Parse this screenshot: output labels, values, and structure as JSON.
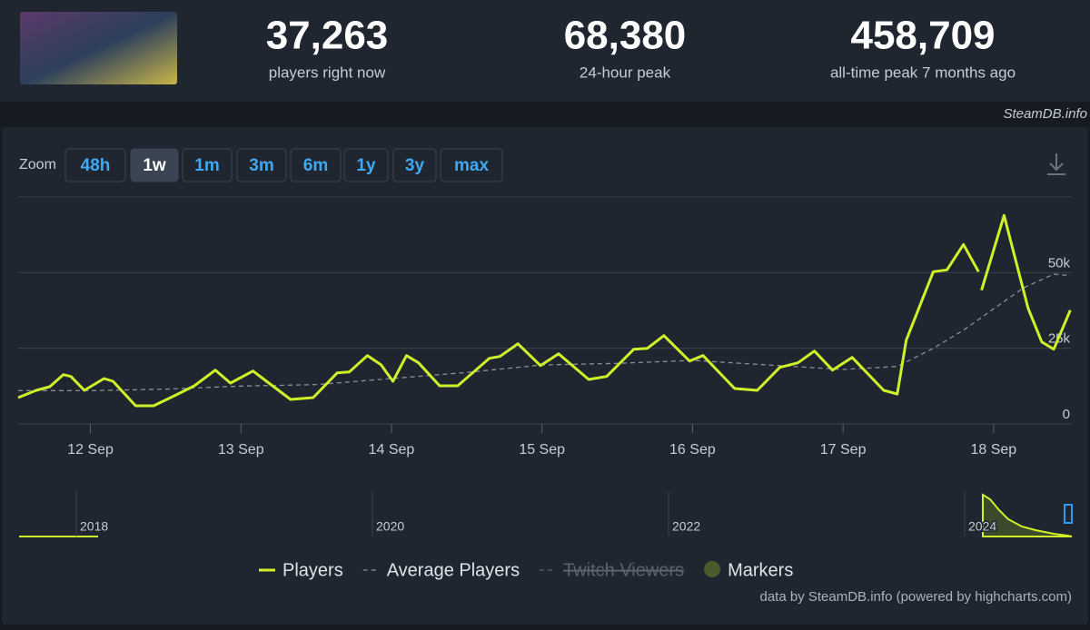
{
  "stats": [
    {
      "value": "37,263",
      "label": "players right now"
    },
    {
      "value": "68,380",
      "label": "24-hour peak"
    },
    {
      "value": "458,709",
      "label": "all-time peak 7 months ago"
    }
  ],
  "watermark": "SteamDB.info",
  "zoom": {
    "label": "Zoom",
    "buttons": [
      "48h",
      "1w",
      "1m",
      "3m",
      "6m",
      "1y",
      "3y",
      "max"
    ],
    "active": "1w"
  },
  "chart_data": {
    "type": "line",
    "xlim": [
      11.52,
      18.52
    ],
    "xticks": [
      {
        "value": 12,
        "label": "12 Sep"
      },
      {
        "value": 13,
        "label": "13 Sep"
      },
      {
        "value": 14,
        "label": "14 Sep"
      },
      {
        "value": 15,
        "label": "15 Sep"
      },
      {
        "value": 16,
        "label": "16 Sep"
      },
      {
        "value": 17,
        "label": "17 Sep"
      },
      {
        "value": 18,
        "label": "18 Sep"
      }
    ],
    "ylim": [
      0,
      75000
    ],
    "yticks": [
      0,
      {
        "value": 25000,
        "label": "25k"
      },
      {
        "value": 50000,
        "label": "50k"
      }
    ],
    "grid": true,
    "series": [
      {
        "name": "Players",
        "color": "#d0f12a",
        "dashed": false,
        "x": [
          11.52,
          11.64,
          11.73,
          11.82,
          11.87,
          11.96,
          12.09,
          12.15,
          12.3,
          12.42,
          12.57,
          12.69,
          12.83,
          12.93,
          13.08,
          13.17,
          13.33,
          13.48,
          13.64,
          13.72,
          13.84,
          13.93,
          14.01,
          14.1,
          14.18,
          14.32,
          14.44,
          14.65,
          14.72,
          14.84,
          14.99,
          15.11,
          15.31,
          15.43,
          15.61,
          15.7,
          15.81,
          15.98,
          16.07,
          16.28,
          16.43,
          16.58,
          16.7,
          16.81,
          16.93,
          17.06,
          17.27,
          17.36,
          17.42,
          17.6,
          17.69,
          17.8,
          17.9,
          17.91,
          17.92,
          18.07,
          18.23,
          18.32,
          18.4,
          18.51
        ],
        "values": [
          8700,
          11100,
          12300,
          16300,
          15700,
          11100,
          15000,
          14100,
          6000,
          6000,
          9600,
          12600,
          17800,
          13500,
          17500,
          14100,
          8100,
          8700,
          16900,
          17200,
          22600,
          19600,
          14100,
          22600,
          20200,
          12600,
          12600,
          21700,
          22300,
          26500,
          19300,
          23200,
          14700,
          15700,
          24700,
          25000,
          29200,
          20800,
          22600,
          11700,
          11100,
          18700,
          20200,
          24100,
          17800,
          22000,
          11100,
          9900,
          27700,
          50300,
          50900,
          59300,
          50300,
          null,
          44200,
          68900,
          38200,
          27100,
          24700,
          37600
        ]
      },
      {
        "name": "Average Players",
        "color": "#8a8f96",
        "dashed": true,
        "x": [
          11.52,
          12,
          12.5,
          13,
          13.5,
          14,
          14.5,
          15,
          15.5,
          16,
          16.5,
          17,
          17.36,
          17.6,
          17.8,
          18,
          18.2,
          18.4,
          18.51
        ],
        "values": [
          11000,
          11000,
          11500,
          12500,
          13000,
          15000,
          17000,
          19500,
          20000,
          21000,
          19500,
          18000,
          19000,
          25000,
          31000,
          38000,
          45000,
          49500,
          49000
        ]
      }
    ],
    "legend_extra": [
      "Twitch Viewers",
      "Markers"
    ],
    "navigator": {
      "labels": [
        "2018",
        "2020",
        "2022",
        "2024"
      ]
    },
    "credit": "data by SteamDB.info (powered by highcharts.com)"
  }
}
